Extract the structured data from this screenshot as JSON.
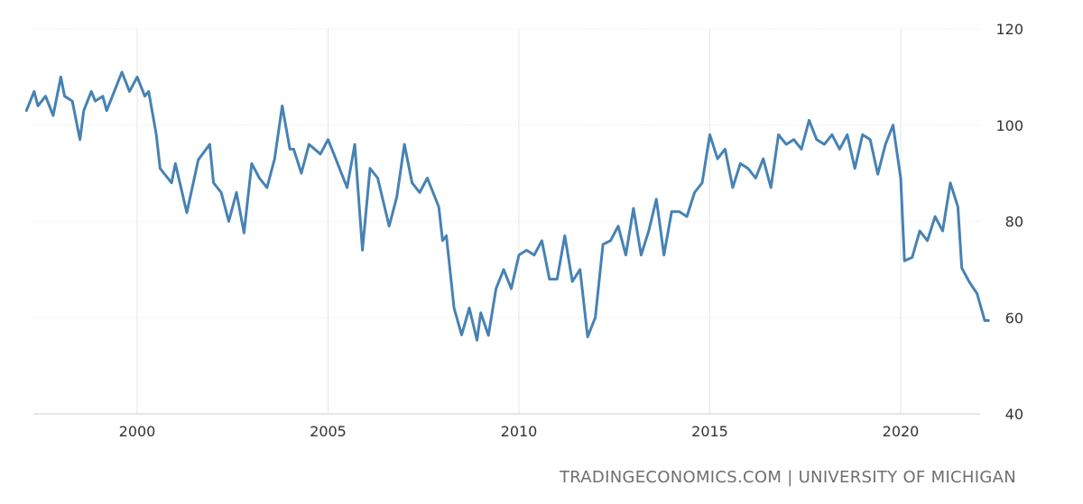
{
  "source": "TRADINGECONOMICS.COM | UNIVERSITY OF MICHIGAN",
  "colors": {
    "line": "#4682b4",
    "grid": "#e6e6e6",
    "text": "#333333",
    "source": "#6f6f6f"
  },
  "chart_data": {
    "type": "line",
    "title": "",
    "xlabel": "",
    "ylabel": "",
    "ylim": [
      40,
      120
    ],
    "xlim": [
      1997.1,
      2022.3
    ],
    "y_ticks": [
      120,
      100,
      80,
      60,
      40
    ],
    "x_ticks": [
      2000,
      2005,
      2010,
      2015,
      2020
    ],
    "y_axis_position": "right",
    "grid": true,
    "series": [
      {
        "x": [
          1997.1,
          1997.3,
          1997.4,
          1997.6,
          1997.8,
          1998.0,
          1998.1,
          1998.3,
          1998.5,
          1998.6,
          1998.8,
          1998.9,
          1999.1,
          1999.2,
          1999.4,
          1999.6,
          1999.8,
          2000.0,
          2000.2,
          2000.3,
          2000.5,
          2000.6,
          2000.9,
          2001.0,
          2001.3,
          2001.6,
          2001.9,
          2002.0,
          2002.2,
          2002.4,
          2002.6,
          2002.8,
          2003.0,
          2003.2,
          2003.4,
          2003.6,
          2003.8,
          2004.0,
          2004.1,
          2004.3,
          2004.5,
          2004.8,
          2005.0,
          2005.2,
          2005.5,
          2005.7,
          2005.9,
          2006.1,
          2006.3,
          2006.6,
          2006.8,
          2007.0,
          2007.2,
          2007.4,
          2007.6,
          2007.9,
          2008.0,
          2008.1,
          2008.3,
          2008.5,
          2008.7,
          2008.9,
          2009.0,
          2009.2,
          2009.4,
          2009.6,
          2009.8,
          2010.0,
          2010.2,
          2010.4,
          2010.6,
          2010.8,
          2011.0,
          2011.2,
          2011.4,
          2011.6,
          2011.8,
          2012.0,
          2012.2,
          2012.4,
          2012.6,
          2012.8,
          2013.0,
          2013.2,
          2013.4,
          2013.6,
          2013.8,
          2014.0,
          2014.2,
          2014.4,
          2014.6,
          2014.8,
          2015.0,
          2015.2,
          2015.4,
          2015.6,
          2015.8,
          2016.0,
          2016.2,
          2016.4,
          2016.6,
          2016.8,
          2017.0,
          2017.2,
          2017.4,
          2017.6,
          2017.8,
          2018.0,
          2018.2,
          2018.4,
          2018.6,
          2018.8,
          2019.0,
          2019.2,
          2019.4,
          2019.6,
          2019.8,
          2020.0,
          2020.1,
          2020.3,
          2020.5,
          2020.7,
          2020.9,
          2021.1,
          2021.3,
          2021.5,
          2021.6,
          2021.8,
          2022.0,
          2022.2,
          2022.3
        ],
        "values": [
          103,
          107,
          104,
          106,
          102,
          110,
          106,
          105,
          97,
          103,
          107,
          105,
          106,
          103,
          107,
          111,
          107,
          110,
          106,
          107,
          98,
          91,
          88,
          92,
          81.8,
          92.8,
          96,
          88,
          86,
          80,
          86,
          77.6,
          92,
          89,
          87,
          93,
          104,
          95,
          95,
          90,
          96,
          94,
          97,
          93,
          87,
          96,
          74,
          91,
          89,
          79,
          85,
          96,
          88,
          86,
          89,
          83,
          76,
          77,
          62,
          56.4,
          62,
          55.3,
          61,
          56.3,
          66,
          70,
          66,
          73,
          74,
          73,
          76,
          68,
          68,
          77,
          67.5,
          70,
          56,
          60,
          75.2,
          76,
          79,
          73,
          82.7,
          73,
          78,
          84.6,
          73,
          82,
          82,
          81,
          86,
          88,
          98,
          93,
          95,
          87,
          92,
          91,
          89,
          93,
          87,
          98,
          96,
          97,
          95,
          101,
          97,
          96,
          98,
          95,
          98,
          91,
          98,
          97,
          89.8,
          96,
          100,
          89,
          71.8,
          72.5,
          78,
          76,
          81,
          78,
          88,
          83,
          70.3,
          67.4,
          65,
          59.4,
          59.4
        ]
      }
    ]
  }
}
